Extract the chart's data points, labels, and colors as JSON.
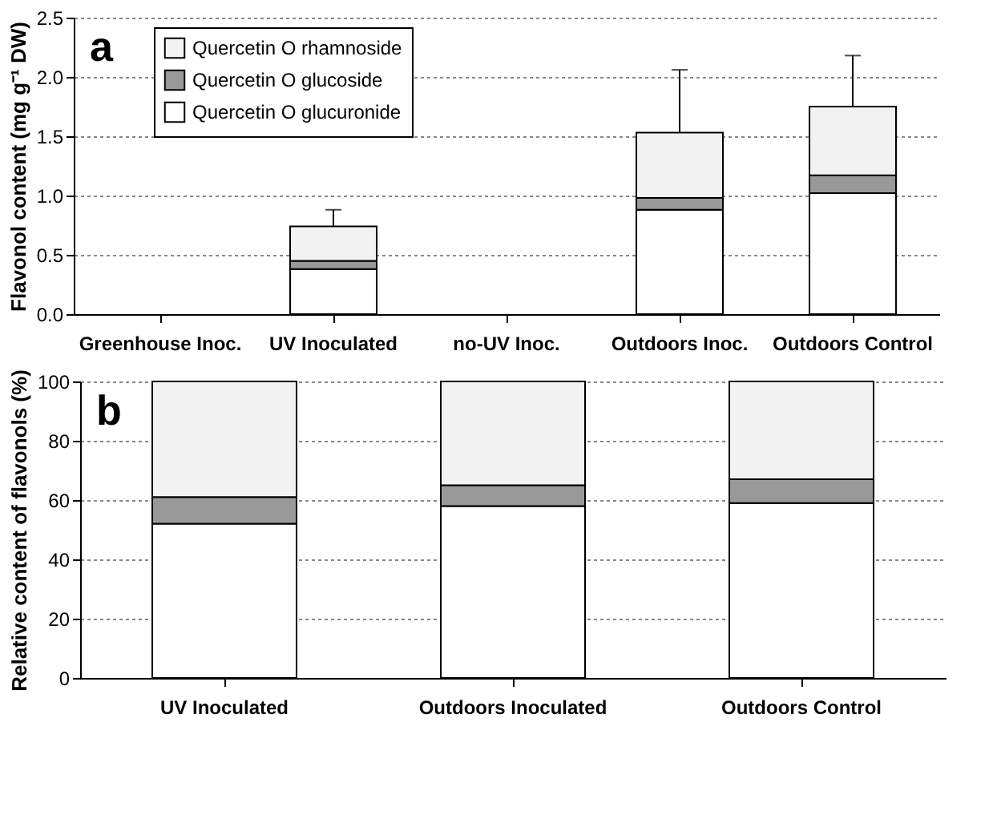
{
  "chart_data": [
    {
      "type": "bar",
      "stacked": true,
      "ylabel": "Flavonol content (mg g⁻¹ DW)",
      "annotations": [
        "a"
      ],
      "categories": [
        "Greenhouse Inoc.",
        "UV  Inoculated",
        "no-UV  Inoc.",
        "Outdoors  Inoc.",
        "Outdoors Control"
      ],
      "series": [
        {
          "name": "Quercetin O glucuronide",
          "color": "#ffffff",
          "values": [
            0,
            0.38,
            0,
            0.88,
            1.02
          ]
        },
        {
          "name": "Quercetin O glucoside",
          "color": "#999999",
          "values": [
            0,
            0.07,
            0,
            0.1,
            0.15
          ]
        },
        {
          "name": "Quercetin O rhamnoside",
          "color": "#f2f2f2",
          "values": [
            0,
            0.29,
            0,
            0.55,
            0.58
          ],
          "errors": [
            null,
            [
              0.74,
              0.88
            ],
            null,
            [
              1.53,
              2.06
            ],
            [
              1.75,
              2.18
            ]
          ]
        }
      ],
      "ylim": [
        0,
        2.5
      ],
      "yticks": [
        {
          "value": 0,
          "label": "0.0"
        },
        {
          "value": 0.5,
          "label": "0.5"
        },
        {
          "value": 1,
          "label": "1.0"
        },
        {
          "value": 1.5,
          "label": "1.5"
        },
        {
          "value": 2,
          "label": "2.0"
        },
        {
          "value": 2.5,
          "label": "2.5"
        }
      ],
      "grid": "y",
      "legend": "top left"
    },
    {
      "type": "bar",
      "stacked": true,
      "ylabel": "Relative content of flavonols (%)",
      "annotations": [
        "b"
      ],
      "categories": [
        "UV  Inoculated",
        "Outdoors  Inoculated",
        "Outdoors  Control"
      ],
      "series": [
        {
          "color": "#ffffff",
          "values": [
            52,
            58,
            59
          ]
        },
        {
          "color": "#999999",
          "values": [
            9,
            7,
            8
          ]
        },
        {
          "color": "#f2f2f2",
          "values": [
            39,
            35,
            33
          ]
        }
      ],
      "ylim": [
        0,
        100
      ],
      "yticks": [
        0,
        20,
        40,
        60,
        80,
        100
      ],
      "grid": "y",
      "legend": false
    }
  ]
}
